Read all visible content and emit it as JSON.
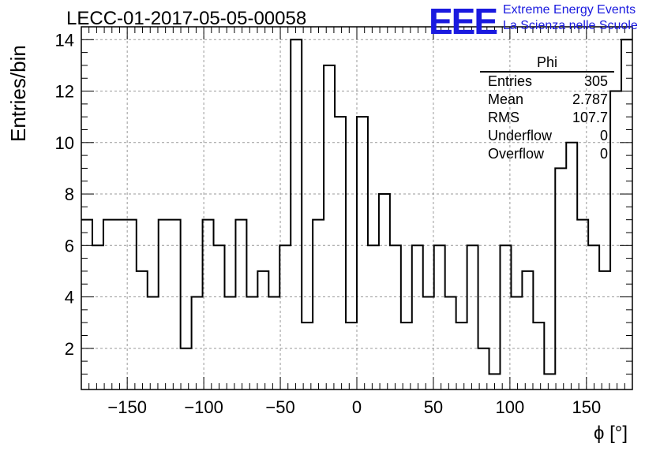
{
  "run_title": "LECC-01-2017-05-05-00058",
  "logo": {
    "mark": "EEE",
    "line1": "Extreme Energy Events",
    "line2": "La Scienza nelle Scuole",
    "color": "#1a1adf"
  },
  "stats": {
    "title": "Phi",
    "rows": [
      {
        "label": "Entries",
        "value": "305"
      },
      {
        "label": "Mean",
        "value": "2.787"
      },
      {
        "label": "RMS",
        "value": "107.7"
      },
      {
        "label": "Underflow",
        "value": "0"
      },
      {
        "label": "Overflow",
        "value": "0"
      }
    ]
  },
  "chart_data": {
    "type": "bar",
    "style": "step-histogram",
    "xlabel": "ϕ [°]",
    "ylabel": "Entries/bin",
    "xlim": [
      -180,
      180
    ],
    "ylim": [
      0.4,
      14.5
    ],
    "xticks": [
      -150,
      -100,
      -50,
      0,
      50,
      100,
      150
    ],
    "yticks": [
      2,
      4,
      6,
      8,
      10,
      12,
      14
    ],
    "grid": true,
    "bin_edges_start": -180,
    "bin_width": 7.2,
    "values": [
      7,
      6,
      7,
      7,
      7,
      5,
      4,
      7,
      7,
      2,
      4,
      7,
      6,
      4,
      7,
      4,
      5,
      4,
      6,
      14,
      3,
      7,
      13,
      11,
      3,
      11,
      6,
      8,
      6,
      3,
      6,
      4,
      6,
      4,
      3,
      6,
      2,
      1,
      6,
      4,
      5,
      3,
      1,
      9,
      10,
      7,
      6,
      5,
      12,
      14
    ]
  }
}
